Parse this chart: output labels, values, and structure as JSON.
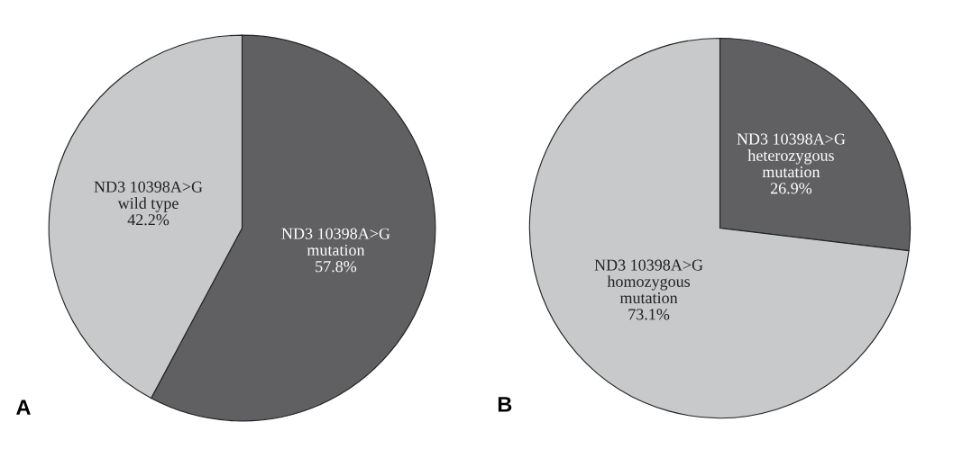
{
  "chart_data": [
    {
      "type": "pie",
      "title": "A",
      "categories": [
        "ND3 10398A>G\nmutation",
        "ND3 10398A>G\nwild type"
      ],
      "values": [
        57.8,
        42.2
      ],
      "colors": [
        "#606062",
        "#c8c9cb"
      ],
      "value_labels": [
        "57.8%",
        "42.2%"
      ]
    },
    {
      "type": "pie",
      "title": "B",
      "categories": [
        "ND3 10398A>G\nheterozygous\nmutation",
        "ND3 10398A>G\nhomozygous\nmutation"
      ],
      "values": [
        26.9,
        73.1
      ],
      "colors": [
        "#606062",
        "#c8c9cb"
      ],
      "value_labels": [
        "26.9%",
        "73.1%"
      ]
    }
  ]
}
